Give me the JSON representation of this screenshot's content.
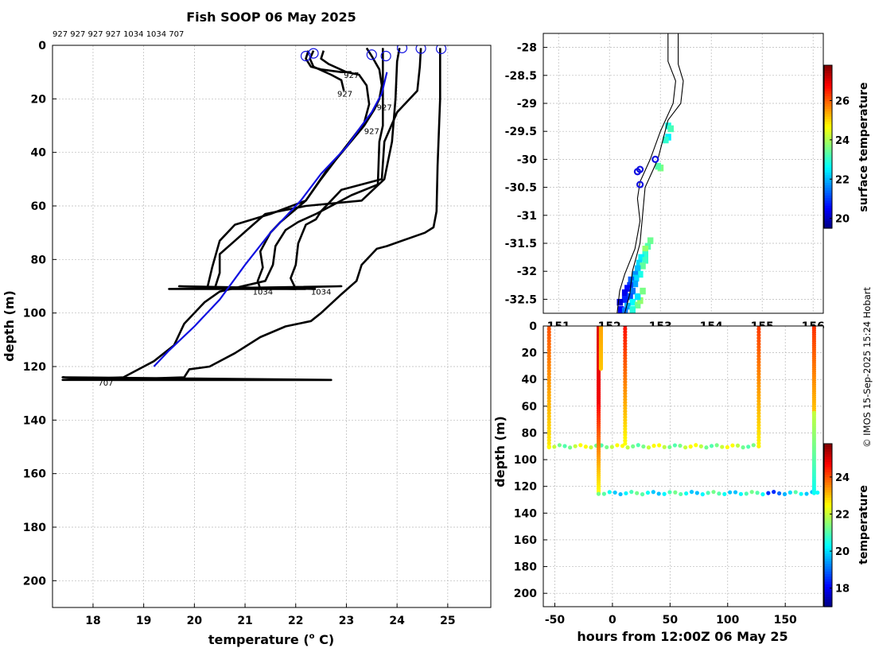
{
  "title": "Fish SOOP 06 May 2025",
  "credit": "© IMOS 15-Sep-2025 15:24 Hobart",
  "colors": {
    "profile": "#000000",
    "mean_profile": "#1010e0",
    "marker": "#1010e0",
    "grid": "#b8b8b8",
    "coast": "#000000"
  },
  "chart_data": [
    {
      "type": "line",
      "name": "temperature-profiles",
      "xlabel": "temperature (",
      "xlabel_sup": "o",
      "xlabel_tail": " C)",
      "ylabel": "depth (m)",
      "xlim": [
        17.2,
        25.85
      ],
      "ylim": [
        210,
        0
      ],
      "xticks": [
        18,
        19,
        20,
        21,
        22,
        23,
        24,
        25
      ],
      "yticks": [
        0,
        20,
        40,
        60,
        80,
        100,
        120,
        140,
        160,
        180,
        200
      ],
      "grid": true,
      "header_ids": "927 927 927 927 1034 1034 707",
      "series": [
        {
          "name": "927",
          "label_at": [
            22.95,
            11
          ],
          "points": [
            [
              22.25,
              2
            ],
            [
              22.2,
              5
            ],
            [
              22.3,
              8
            ],
            [
              22.5,
              9
            ],
            [
              22.9,
              10
            ],
            [
              23.1,
              10
            ]
          ]
        },
        {
          "name": "927",
          "label_at": [
            22.82,
            18
          ],
          "points": [
            [
              22.35,
              2
            ],
            [
              22.28,
              5
            ],
            [
              22.35,
              8
            ],
            [
              22.7,
              11
            ],
            [
              22.9,
              13
            ],
            [
              22.95,
              17
            ]
          ]
        },
        {
          "name": "927",
          "label_at": [
            23.6,
            23
          ],
          "points": [
            [
              23.4,
              1
            ],
            [
              23.5,
              4
            ],
            [
              23.65,
              9
            ],
            [
              23.7,
              15
            ],
            [
              23.65,
              20
            ],
            [
              23.55,
              24
            ],
            [
              23.35,
              30
            ],
            [
              23.0,
              38
            ],
            [
              22.6,
              47
            ],
            [
              22.2,
              58
            ],
            [
              21.7,
              66
            ],
            [
              21.5,
              70
            ],
            [
              21.3,
              77
            ],
            [
              21.35,
              83
            ],
            [
              21.25,
              88
            ],
            [
              21.3,
              91
            ]
          ]
        },
        {
          "name": "927",
          "label_at": [
            23.35,
            32
          ],
          "points": [
            [
              22.55,
              2
            ],
            [
              22.5,
              5
            ],
            [
              22.65,
              7
            ],
            [
              23.0,
              10
            ],
            [
              23.25,
              11
            ],
            [
              23.4,
              15
            ],
            [
              23.45,
              22
            ],
            [
              23.35,
              29
            ],
            [
              22.9,
              40
            ],
            [
              22.5,
              50
            ],
            [
              22.2,
              58
            ],
            [
              21.5,
              63
            ],
            [
              20.8,
              67
            ],
            [
              20.5,
              73
            ],
            [
              20.35,
              83
            ],
            [
              20.25,
              91
            ]
          ]
        },
        {
          "name": "1034",
          "label_at": [
            21.15,
            92
          ],
          "points": [
            [
              24.05,
              1
            ],
            [
              24.0,
              6
            ],
            [
              23.97,
              20
            ],
            [
              23.9,
              36
            ],
            [
              23.75,
              50
            ],
            [
              23.3,
              58
            ],
            [
              22.2,
              60
            ],
            [
              21.4,
              63
            ],
            [
              21.1,
              68
            ],
            [
              20.8,
              73
            ],
            [
              20.5,
              78
            ],
            [
              20.5,
              85
            ],
            [
              20.4,
              91
            ],
            [
              22.9,
              90
            ],
            [
              19.5,
              91
            ],
            [
              22.2,
              91
            ]
          ]
        },
        {
          "name": "1034",
          "label_at": [
            22.3,
            92
          ],
          "points": [
            [
              24.47,
              1
            ],
            [
              24.45,
              8
            ],
            [
              24.4,
              17
            ],
            [
              24.0,
              25
            ],
            [
              23.75,
              36
            ],
            [
              23.7,
              50
            ],
            [
              22.9,
              54
            ],
            [
              22.5,
              62
            ],
            [
              22.4,
              65
            ],
            [
              22.2,
              67
            ],
            [
              22.05,
              74
            ],
            [
              22.0,
              82
            ],
            [
              21.9,
              87
            ],
            [
              22.0,
              91
            ],
            [
              19.7,
              90
            ],
            [
              22.4,
              91
            ]
          ]
        },
        {
          "name": "707",
          "label_at": [
            18.1,
            126
          ],
          "points": [
            [
              24.85,
              1
            ],
            [
              24.85,
              20
            ],
            [
              24.8,
              45
            ],
            [
              24.78,
              62
            ],
            [
              24.72,
              68
            ],
            [
              24.55,
              70
            ],
            [
              23.8,
              75
            ],
            [
              23.6,
              76
            ],
            [
              23.3,
              82
            ],
            [
              23.2,
              88
            ],
            [
              22.9,
              93
            ],
            [
              22.5,
              100
            ],
            [
              22.3,
              103
            ],
            [
              21.8,
              105
            ],
            [
              21.3,
              109
            ],
            [
              20.8,
              115
            ],
            [
              20.3,
              120
            ],
            [
              19.9,
              121
            ],
            [
              19.8,
              124
            ],
            [
              18.2,
              125
            ],
            [
              17.4,
              124
            ],
            [
              22.7,
              125
            ],
            [
              18.3,
              125
            ]
          ]
        },
        {
          "name": "707",
          "label_at": null,
          "points": [
            [
              23.72,
              1
            ],
            [
              23.72,
              15
            ],
            [
              23.72,
              30
            ],
            [
              23.65,
              36
            ],
            [
              23.62,
              52
            ],
            [
              23.1,
              56
            ],
            [
              22.4,
              63
            ],
            [
              22.05,
              66
            ],
            [
              21.8,
              69
            ],
            [
              21.6,
              75
            ],
            [
              21.55,
              82
            ],
            [
              21.4,
              88
            ],
            [
              20.5,
              92
            ],
            [
              20.2,
              96
            ],
            [
              19.8,
              104
            ],
            [
              19.6,
              112
            ],
            [
              19.2,
              118
            ],
            [
              18.9,
              121
            ],
            [
              18.6,
              124
            ],
            [
              17.4,
              125
            ],
            [
              22.7,
              125
            ]
          ]
        }
      ],
      "mean_profile": {
        "name": "mean",
        "points": [
          [
            23.8,
            10
          ],
          [
            23.7,
            18
          ],
          [
            23.5,
            25
          ],
          [
            23.3,
            30
          ],
          [
            23.0,
            38
          ],
          [
            22.5,
            48
          ],
          [
            22.1,
            58
          ],
          [
            21.5,
            70
          ],
          [
            21.0,
            82
          ],
          [
            20.5,
            95
          ],
          [
            20.0,
            105
          ],
          [
            19.5,
            114
          ],
          [
            19.2,
            120
          ]
        ]
      },
      "markers": [
        [
          22.2,
          4
        ],
        [
          22.35,
          3
        ],
        [
          23.5,
          3.5
        ],
        [
          23.78,
          4
        ],
        [
          24.1,
          1
        ],
        [
          24.47,
          1.2
        ],
        [
          24.87,
          1.3
        ]
      ]
    },
    {
      "type": "heatmap",
      "name": "surface-temperature-map",
      "xlim": [
        150.7,
        156.2
      ],
      "ylim": [
        -32.75,
        -27.75
      ],
      "xticks": [
        151,
        152,
        153,
        154,
        155,
        156
      ],
      "yticks": [
        -28,
        -28.5,
        -29,
        -29.5,
        -30,
        -30.5,
        -31,
        -31.5,
        -32,
        -32.5
      ],
      "colorbar_label": "surface temperature",
      "colorbar_ticks": [
        20,
        22,
        24,
        26
      ],
      "colorbar_range": [
        19.5,
        27.8
      ],
      "stations": [
        [
          152.9,
          -30.0
        ],
        [
          152.55,
          -30.22
        ],
        [
          152.6,
          -30.18
        ],
        [
          152.6,
          -30.45
        ]
      ],
      "coast_a": [
        [
          152.3,
          -32.75
        ],
        [
          152.4,
          -32.4
        ],
        [
          152.45,
          -32.0
        ],
        [
          152.6,
          -31.5
        ],
        [
          152.65,
          -31.0
        ],
        [
          152.7,
          -30.5
        ],
        [
          152.95,
          -30.0
        ],
        [
          153.15,
          -29.3
        ],
        [
          153.4,
          -29.0
        ],
        [
          153.45,
          -28.6
        ],
        [
          153.35,
          -28.3
        ],
        [
          153.35,
          -27.75
        ]
      ],
      "coast_b": [
        [
          152.15,
          -32.75
        ],
        [
          152.2,
          -32.35
        ],
        [
          152.3,
          -32.05
        ],
        [
          152.5,
          -31.6
        ],
        [
          152.6,
          -31.1
        ],
        [
          152.55,
          -30.7
        ],
        [
          152.6,
          -30.4
        ],
        [
          152.8,
          -30.0
        ],
        [
          153.0,
          -29.5
        ],
        [
          153.25,
          -29.0
        ],
        [
          153.3,
          -28.6
        ],
        [
          153.15,
          -28.25
        ],
        [
          153.15,
          -27.75
        ]
      ],
      "pixels": [
        [
          153.15,
          -29.4,
          22.8
        ],
        [
          153.2,
          -29.45,
          23.2
        ],
        [
          153.15,
          -29.6,
          22.5
        ],
        [
          153.1,
          -29.65,
          23.0
        ],
        [
          153.0,
          -30.15,
          23.6
        ],
        [
          152.95,
          -30.12,
          23.3
        ],
        [
          152.8,
          -31.45,
          23.5
        ],
        [
          152.75,
          -31.55,
          23.3
        ],
        [
          152.7,
          -31.6,
          23.8
        ],
        [
          152.7,
          -31.7,
          23.0
        ],
        [
          152.62,
          -31.75,
          22.5
        ],
        [
          152.7,
          -31.8,
          23.1
        ],
        [
          152.58,
          -31.85,
          22.3
        ],
        [
          152.65,
          -31.9,
          23.4
        ],
        [
          152.55,
          -31.95,
          22.1
        ],
        [
          152.6,
          -32.05,
          22.8
        ],
        [
          152.5,
          -32.05,
          21.7
        ],
        [
          152.52,
          -32.12,
          22.3
        ],
        [
          152.42,
          -32.15,
          21.3
        ],
        [
          152.5,
          -32.22,
          21.9
        ],
        [
          152.4,
          -32.25,
          21.0
        ],
        [
          152.35,
          -32.3,
          20.6
        ],
        [
          152.45,
          -32.35,
          21.5
        ],
        [
          152.3,
          -32.38,
          20.4
        ],
        [
          152.4,
          -32.45,
          21.2
        ],
        [
          152.3,
          -32.5,
          20.8
        ],
        [
          152.2,
          -32.55,
          20.2
        ],
        [
          152.45,
          -32.55,
          22.6
        ],
        [
          152.55,
          -32.6,
          23.5
        ],
        [
          152.35,
          -32.62,
          21.9
        ],
        [
          152.22,
          -32.68,
          20.5
        ],
        [
          152.45,
          -32.68,
          22.9
        ],
        [
          152.6,
          -32.52,
          23.8
        ],
        [
          152.55,
          -32.45,
          22.4
        ],
        [
          152.65,
          -32.35,
          23.6
        ],
        [
          152.3,
          -32.7,
          21.5
        ]
      ]
    },
    {
      "type": "scatter",
      "name": "depth-time-section",
      "xlabel": "hours from 12:00Z 06 May 25",
      "ylabel": "depth (m)",
      "xlim": [
        -60,
        183
      ],
      "ylim": [
        210,
        0
      ],
      "xticks": [
        -50,
        0,
        50,
        100,
        150
      ],
      "yticks": [
        0,
        20,
        40,
        60,
        80,
        100,
        120,
        140,
        160,
        180,
        200
      ],
      "colorbar_label": "temperature",
      "colorbar_ticks": [
        18,
        20,
        22,
        24
      ],
      "colorbar_range": [
        17.0,
        25.8
      ],
      "segments": [
        {
          "x": [
            -55,
            -55
          ],
          "depth": [
            0,
            90
          ],
          "temp": [
            24.0,
            22.7
          ]
        },
        {
          "x": [
            -55,
            127
          ],
          "depth": [
            90,
            90
          ],
          "temp": [
            21.8,
            21.8
          ]
        },
        {
          "x": [
            -12,
            -12
          ],
          "depth": [
            0,
            60
          ],
          "temp": [
            25.0,
            24.8
          ]
        },
        {
          "x": [
            -12,
            -12
          ],
          "depth": [
            60,
            125
          ],
          "temp": [
            24.6,
            22.5
          ]
        },
        {
          "x": [
            -10,
            -10
          ],
          "depth": [
            0,
            32
          ],
          "temp": [
            23.3,
            23.0
          ]
        },
        {
          "x": [
            11,
            11
          ],
          "depth": [
            0,
            88
          ],
          "temp": [
            24.6,
            22.5
          ]
        },
        {
          "x": [
            127,
            127
          ],
          "depth": [
            0,
            90
          ],
          "temp": [
            24.2,
            22.6
          ]
        },
        {
          "x": [
            -12,
            178
          ],
          "depth": [
            125,
            125
          ],
          "temp": [
            20.5,
            20.5
          ]
        },
        {
          "x": [
            175,
            175
          ],
          "depth": [
            0,
            65
          ],
          "temp": [
            24.3,
            23.0
          ]
        },
        {
          "x": [
            175,
            175
          ],
          "depth": [
            65,
            125
          ],
          "temp": [
            22.0,
            20.4
          ]
        }
      ]
    }
  ]
}
